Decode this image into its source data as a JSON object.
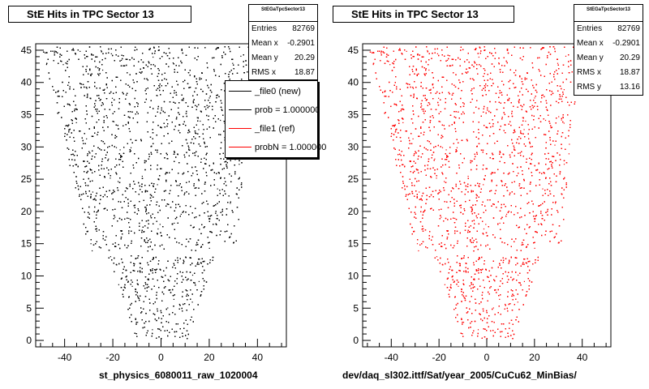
{
  "chart_data": [
    {
      "type": "scatter",
      "title": "StE Hits in TPC Sector 13",
      "xlabel": "st_physics_6080011_raw_1020004",
      "ylabel": "",
      "xlim": [
        -52,
        52
      ],
      "ylim": [
        -1,
        46
      ],
      "xticks": [
        -40,
        -20,
        0,
        20,
        40
      ],
      "yticks": [
        0,
        5,
        10,
        15,
        20,
        25,
        30,
        35,
        40,
        45
      ],
      "marker_color": "#000000",
      "stats_box": {
        "name": "StEGaTpcSector13",
        "rows": [
          {
            "label": "Entries",
            "value": "82769"
          },
          {
            "label": "Mean x",
            "value": "-0.2901"
          },
          {
            "label": "Mean y",
            "value": "20.29"
          },
          {
            "label": "RMS x",
            "value": "18.87"
          }
        ]
      },
      "legend": [
        {
          "label": "_file0 (new)",
          "color": "#000000"
        },
        {
          "label": "prob = 1.000000",
          "color": "#000000"
        },
        {
          "label": "_file1 (ref)",
          "color": "#ff0000"
        },
        {
          "label": "probN = 1.000000",
          "color": "#ff0000"
        }
      ]
    },
    {
      "type": "scatter",
      "title": "StE Hits in TPC Sector 13",
      "xlabel": "dev/daq_sl302.ittf/Sat/year_2005/CuCu62_MinBias/",
      "ylabel": "",
      "xlim": [
        -52,
        52
      ],
      "ylim": [
        -1,
        46
      ],
      "xticks": [
        -40,
        -20,
        0,
        20,
        40
      ],
      "yticks": [
        0,
        5,
        10,
        15,
        20,
        25,
        30,
        35,
        40,
        45
      ],
      "marker_color": "#ff0000",
      "stats_box": {
        "name": "StEGaTpcSector13",
        "rows": [
          {
            "label": "Entries",
            "value": "82769"
          },
          {
            "label": "Mean x",
            "value": "-0.2901"
          },
          {
            "label": "Mean y",
            "value": "20.29"
          },
          {
            "label": "RMS x",
            "value": "18.87"
          },
          {
            "label": "RMS y",
            "value": "13.16"
          }
        ]
      }
    }
  ]
}
